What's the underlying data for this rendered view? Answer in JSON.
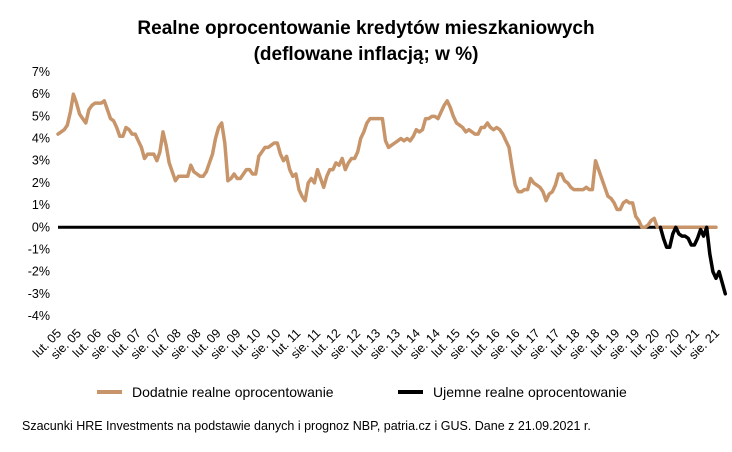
{
  "chart_data": {
    "type": "line",
    "title_line1": "Realne oprocentowanie kredytów mieszkaniowych",
    "title_line2": "(deflowane inflacją; w %)",
    "ylim": [
      -4,
      7
    ],
    "yticks": [
      7,
      6,
      5,
      4,
      3,
      2,
      1,
      0,
      -1,
      -2,
      -3,
      -4
    ],
    "ytick_labels": [
      "7%",
      "6%",
      "5%",
      "4%",
      "3%",
      "2%",
      "1%",
      "0%",
      "-1%",
      "-2%",
      "-3%",
      "-4%"
    ],
    "xtick_labels": [
      "lut. 05",
      "sie. 05",
      "lut. 06",
      "sie. 06",
      "lut. 07",
      "sie. 07",
      "lut. 08",
      "sie. 08",
      "lut. 09",
      "sie. 09",
      "lut. 10",
      "sie. 10",
      "lut. 11",
      "sie. 11",
      "lut. 12",
      "sie. 12",
      "lut. 13",
      "sie. 13",
      "lut. 14",
      "sie. 14",
      "lut. 15",
      "sie. 15",
      "lut. 16",
      "sie. 16",
      "lut. 17",
      "sie. 17",
      "lut. 18",
      "sie. 18",
      "lut. 19",
      "sie. 19",
      "lut. 20",
      "sie. 20",
      "lut. 21",
      "sie. 21"
    ],
    "grid": false,
    "legend_position": "bottom",
    "series": [
      {
        "name": "Dodatnie realne oprocentowanie",
        "color": "#C8956A",
        "values": [
          4.2,
          4.3,
          4.4,
          4.6,
          5.2,
          6.0,
          5.6,
          5.1,
          4.9,
          4.7,
          5.3,
          5.5,
          5.6,
          5.6,
          5.6,
          5.7,
          5.3,
          4.9,
          4.8,
          4.5,
          4.1,
          4.1,
          4.5,
          4.4,
          4.2,
          4.2,
          3.9,
          3.6,
          3.1,
          3.3,
          3.3,
          3.3,
          3.0,
          3.4,
          4.3,
          3.7,
          2.9,
          2.5,
          2.1,
          2.3,
          2.3,
          2.3,
          2.3,
          2.8,
          2.5,
          2.4,
          2.3,
          2.3,
          2.5,
          2.9,
          3.3,
          4.0,
          4.5,
          4.7,
          3.8,
          2.1,
          2.2,
          2.4,
          2.2,
          2.2,
          2.4,
          2.6,
          2.6,
          2.4,
          2.4,
          3.2,
          3.4,
          3.6,
          3.6,
          3.7,
          3.8,
          3.8,
          3.3,
          3.0,
          3.2,
          2.6,
          2.3,
          2.4,
          1.7,
          1.4,
          1.2,
          2.0,
          2.2,
          2.0,
          2.6,
          2.2,
          1.8,
          2.3,
          2.6,
          2.6,
          2.9,
          2.8,
          3.1,
          2.6,
          2.9,
          3.1,
          3.1,
          3.4,
          4.0,
          4.3,
          4.7,
          4.9,
          4.9,
          4.9,
          4.9,
          4.9,
          3.9,
          3.6,
          3.7,
          3.8,
          3.9,
          4.0,
          3.9,
          4.0,
          3.9,
          4.1,
          4.4,
          4.3,
          4.4,
          4.9,
          4.9,
          5.0,
          5.0,
          4.9,
          5.2,
          5.5,
          5.7,
          5.4,
          5.0,
          4.7,
          4.6,
          4.5,
          4.3,
          4.4,
          4.3,
          4.2,
          4.2,
          4.5,
          4.5,
          4.7,
          4.5,
          4.4,
          4.5,
          4.4,
          4.2,
          3.9,
          3.6,
          2.7,
          1.9,
          1.6,
          1.6,
          1.7,
          1.7,
          2.2,
          2.0,
          1.9,
          1.8,
          1.6,
          1.2,
          1.5,
          1.6,
          1.9,
          2.4,
          2.4,
          2.1,
          2.0,
          1.8,
          1.7,
          1.7,
          1.7,
          1.7,
          1.8,
          1.7,
          1.7,
          3.0,
          2.6,
          2.2,
          1.8,
          1.4,
          1.3,
          1.1,
          0.8,
          0.8,
          1.1,
          1.2,
          1.1,
          1.1,
          0.5,
          0.3,
          0.0,
          0.0,
          0.1,
          0.3,
          0.4,
          0.0,
          0.0,
          0.0,
          0.0,
          0.0,
          0.0,
          0.0,
          0.0,
          0.0,
          0.0,
          0.0,
          0.0,
          0.0,
          0.0,
          0.0,
          0.0,
          0.0,
          0.0,
          0.0,
          0.0
        ]
      },
      {
        "name": "Ujemne realne oprocentowanie",
        "color": "#000000",
        "values": [
          0,
          0,
          0,
          0,
          0,
          0,
          0,
          0,
          0,
          0,
          0,
          0,
          0,
          0,
          0,
          0,
          0,
          0,
          0,
          0,
          0,
          0,
          0,
          0,
          0,
          0,
          0,
          0,
          0,
          0,
          0,
          0,
          0,
          0,
          0,
          0,
          0,
          0,
          0,
          0,
          0,
          0,
          0,
          0,
          0,
          0,
          0,
          0,
          0,
          0,
          0,
          0,
          0,
          0,
          0,
          0,
          0,
          0,
          0,
          0,
          0,
          0,
          0,
          0,
          0,
          0,
          0,
          0,
          0,
          0,
          0,
          0,
          0,
          0,
          0,
          0,
          0,
          0,
          0,
          0,
          0,
          0,
          0,
          0,
          0,
          0,
          0,
          0,
          0,
          0,
          0,
          0,
          0,
          0,
          0,
          0,
          0,
          0,
          0,
          0,
          0,
          0,
          0,
          0,
          0,
          0,
          0,
          0,
          0,
          0,
          0,
          0,
          0,
          0,
          0,
          0,
          0,
          0,
          0,
          0,
          0,
          0,
          0,
          0,
          0,
          0,
          0,
          0,
          0,
          0,
          0,
          0,
          0,
          0,
          0,
          0,
          0,
          0,
          0,
          0,
          0,
          0,
          0,
          0,
          0,
          0,
          0,
          0,
          0,
          0,
          0,
          0,
          0,
          0,
          0,
          0,
          0,
          0,
          0,
          0,
          0,
          0,
          0,
          0,
          0,
          0,
          0,
          0,
          0,
          0,
          0,
          0,
          0,
          0,
          0,
          0,
          0,
          0,
          0,
          0,
          0,
          0,
          0,
          0,
          0,
          0,
          0,
          0,
          0,
          0,
          0,
          0,
          0,
          0,
          0,
          0,
          -0.5,
          -0.9,
          -0.9,
          -0.3,
          0.0,
          -0.3,
          -0.4,
          -0.4,
          -0.5,
          -0.8,
          -0.8,
          -0.5,
          -0.1,
          -0.4,
          0.0,
          -1.2,
          -2.0,
          -2.3,
          -2.0,
          -2.5,
          -3.0
        ]
      }
    ]
  },
  "source_note": "Szacunki HRE Investments na podstawie danych i prognoz NBP,  patria.cz  i GUS. Dane z 21.09.2021 r."
}
